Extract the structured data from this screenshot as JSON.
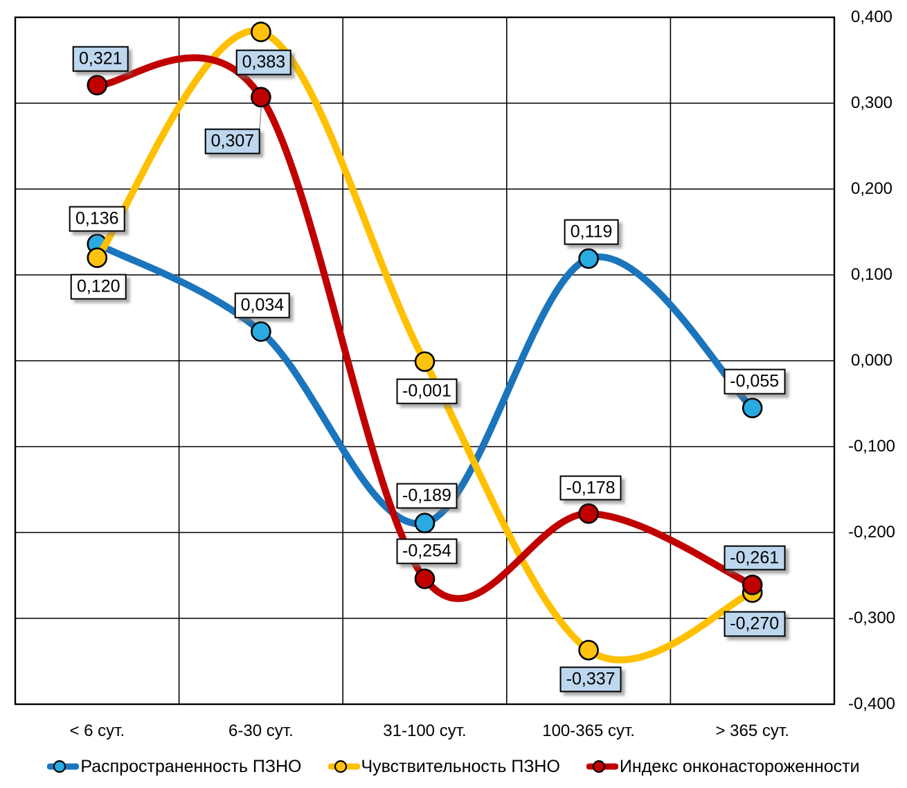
{
  "chart_data": {
    "type": "line",
    "title": "",
    "smoothed": true,
    "grid": true,
    "legend_position": "bottom",
    "categories": [
      "< 6 сут.",
      "6-30 сут.",
      "31-100 сут.",
      "100-365 сут.",
      "> 365 сут."
    ],
    "y_axis": {
      "side": "right",
      "min": -0.4,
      "max": 0.4,
      "step": 0.1,
      "tick_labels": [
        "0,400",
        "0,300",
        "0,200",
        "0,100",
        "0,000",
        "-0,100",
        "-0,200",
        "-0,300",
        "-0,400"
      ]
    },
    "label_backgrounds": {
      "white": "#FFFFFF",
      "lightblue": "#BDD7EE"
    },
    "leader_line_color": "#A6A6A6",
    "series": [
      {
        "name": "Распространенность ПЗНО",
        "line_color": "#1B75BC",
        "marker_color": "#29ABE2",
        "values": [
          0.136,
          0.034,
          -0.189,
          0.119,
          -0.055
        ],
        "point_labels": [
          {
            "text": "0,136",
            "bg": "white",
            "dx": 0,
            "dy": -36
          },
          {
            "text": "0,034",
            "bg": "white",
            "dx": 2,
            "dy": -38
          },
          {
            "text": "-0,189",
            "bg": "white",
            "dx": 3,
            "dy": -39
          },
          {
            "text": "0,119",
            "bg": "white",
            "dx": 4,
            "dy": -38
          },
          {
            "text": "-0,055",
            "bg": "white",
            "dx": 3,
            "dy": -38
          }
        ]
      },
      {
        "name": "Чувствительность ПЗНО",
        "line_color": "#FFC000",
        "marker_color": "#FFC20E",
        "values": [
          0.12,
          0.383,
          -0.001,
          -0.337,
          -0.27
        ],
        "point_labels": [
          {
            "text": "0,120",
            "bg": "white",
            "dx": 2,
            "dy": 42
          },
          {
            "text": "0,383",
            "bg": "lightblue",
            "dx": 4,
            "dy": 44
          },
          {
            "text": "-0,001",
            "bg": "white",
            "dx": 3,
            "dy": 43
          },
          {
            "text": "-0,337",
            "bg": "lightblue",
            "dx": 3,
            "dy": 42
          },
          {
            "text": "-0,270",
            "bg": "lightblue",
            "dx": 3,
            "dy": 45
          }
        ]
      },
      {
        "name": "Индекс онконастороженности",
        "line_color": "#C00000",
        "marker_color": "#C00000",
        "values": [
          0.321,
          0.307,
          -0.254,
          -0.178,
          -0.261
        ],
        "point_labels": [
          {
            "text": "0,321",
            "bg": "lightblue",
            "dx": 5,
            "dy": -38
          },
          {
            "text": "0,307",
            "bg": "lightblue",
            "dx": -41,
            "dy": 64,
            "leader": true
          },
          {
            "text": "-0,254",
            "bg": "white",
            "dx": 3,
            "dy": -40
          },
          {
            "text": "-0,178",
            "bg": "white",
            "dx": 3,
            "dy": -37
          },
          {
            "text": "-0,261",
            "bg": "lightblue",
            "dx": 3,
            "dy": -39
          }
        ]
      }
    ]
  }
}
